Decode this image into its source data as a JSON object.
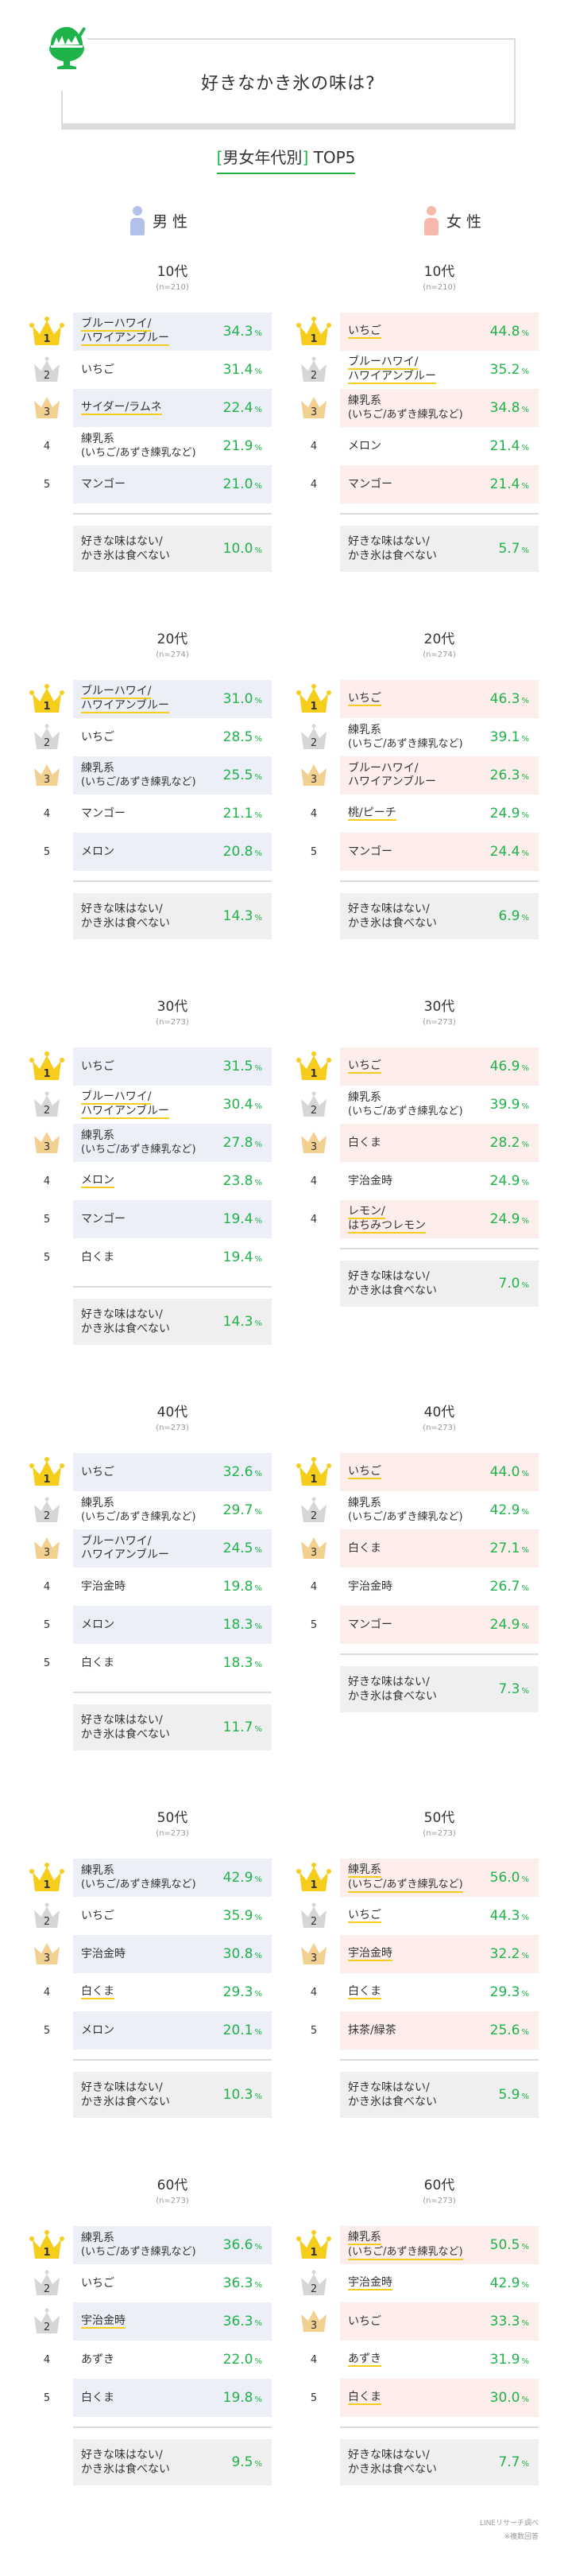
{
  "header": {
    "title": "好きなかき氷の味は?"
  },
  "subtitle": {
    "bracket_open": "[",
    "text": "男女年代別",
    "bracket_close": "]",
    "suffix": " TOP5"
  },
  "genders": {
    "male": "男 性",
    "female": "女 性"
  },
  "colors": {
    "accent": "#1fb34a",
    "male_row": "#eceef8",
    "female_row": "#fdeeec",
    "none_row": "#efefef",
    "underline": "#f7cd1d",
    "gold": "#f7cd1d",
    "silver": "#d6d6d6",
    "bronze": "#f2d08f",
    "male_icon": "#b3c0e8",
    "female_icon": "#f8b9ad"
  },
  "none_label": {
    "line1": "好きな味はない/",
    "line2": "かき氷は食べない"
  },
  "percent_sign": "%",
  "sections": [
    {
      "age": "10代",
      "n": "(n=210)",
      "male": {
        "items": [
          {
            "rank": "1",
            "crown": "gold",
            "lines": [
              "ブルーハワイ/",
              "ハワイアンブルー"
            ],
            "value": "34.3",
            "ul": true
          },
          {
            "rank": "2",
            "crown": "silver",
            "lines": [
              "いちご"
            ],
            "value": "31.4",
            "ul": false
          },
          {
            "rank": "3",
            "crown": "bronze",
            "lines": [
              "サイダー/ラムネ"
            ],
            "value": "22.4",
            "ul": true
          },
          {
            "rank": "4",
            "crown": "",
            "lines": [
              "練乳系",
              "(いちご/あずき練乳など)"
            ],
            "value": "21.9",
            "ul": false
          },
          {
            "rank": "5",
            "crown": "",
            "lines": [
              "マンゴー"
            ],
            "value": "21.0",
            "ul": false
          }
        ],
        "none_value": "10.0"
      },
      "female": {
        "items": [
          {
            "rank": "1",
            "crown": "gold",
            "lines": [
              "いちご"
            ],
            "value": "44.8",
            "ul": true
          },
          {
            "rank": "2",
            "crown": "silver",
            "lines": [
              "ブルーハワイ/",
              "ハワイアンブルー"
            ],
            "value": "35.2",
            "ul": true
          },
          {
            "rank": "3",
            "crown": "bronze",
            "lines": [
              "練乳系",
              "(いちご/あずき練乳など)"
            ],
            "value": "34.8",
            "ul": false
          },
          {
            "rank": "4",
            "crown": "",
            "lines": [
              "メロン"
            ],
            "value": "21.4",
            "ul": false
          },
          {
            "rank": "4",
            "crown": "",
            "lines": [
              "マンゴー"
            ],
            "value": "21.4",
            "ul": false
          }
        ],
        "none_value": "5.7"
      }
    },
    {
      "age": "20代",
      "n": "(n=274)",
      "male": {
        "items": [
          {
            "rank": "1",
            "crown": "gold",
            "lines": [
              "ブルーハワイ/",
              "ハワイアンブルー"
            ],
            "value": "31.0",
            "ul": true
          },
          {
            "rank": "2",
            "crown": "silver",
            "lines": [
              "いちご"
            ],
            "value": "28.5",
            "ul": false
          },
          {
            "rank": "3",
            "crown": "bronze",
            "lines": [
              "練乳系",
              "(いちご/あずき練乳など)"
            ],
            "value": "25.5",
            "ul": false
          },
          {
            "rank": "4",
            "crown": "",
            "lines": [
              "マンゴー"
            ],
            "value": "21.1",
            "ul": false
          },
          {
            "rank": "5",
            "crown": "",
            "lines": [
              "メロン"
            ],
            "value": "20.8",
            "ul": false
          }
        ],
        "none_value": "14.3"
      },
      "female": {
        "items": [
          {
            "rank": "1",
            "crown": "gold",
            "lines": [
              "いちご"
            ],
            "value": "46.3",
            "ul": true
          },
          {
            "rank": "2",
            "crown": "silver",
            "lines": [
              "練乳系",
              "(いちご/あずき練乳など)"
            ],
            "value": "39.1",
            "ul": false
          },
          {
            "rank": "3",
            "crown": "bronze",
            "lines": [
              "ブルーハワイ/",
              "ハワイアンブルー"
            ],
            "value": "26.3",
            "ul": false
          },
          {
            "rank": "4",
            "crown": "",
            "lines": [
              "桃/ピーチ"
            ],
            "value": "24.9",
            "ul": true
          },
          {
            "rank": "5",
            "crown": "",
            "lines": [
              "マンゴー"
            ],
            "value": "24.4",
            "ul": false
          }
        ],
        "none_value": "6.9"
      }
    },
    {
      "age": "30代",
      "n": "(n=273)",
      "male": {
        "items": [
          {
            "rank": "1",
            "crown": "gold",
            "lines": [
              "いちご"
            ],
            "value": "31.5",
            "ul": false
          },
          {
            "rank": "2",
            "crown": "silver",
            "lines": [
              "ブルーハワイ/",
              "ハワイアンブルー"
            ],
            "value": "30.4",
            "ul": true
          },
          {
            "rank": "3",
            "crown": "bronze",
            "lines": [
              "練乳系",
              "(いちご/あずき練乳など)"
            ],
            "value": "27.8",
            "ul": false
          },
          {
            "rank": "4",
            "crown": "",
            "lines": [
              "メロン"
            ],
            "value": "23.8",
            "ul": true
          },
          {
            "rank": "5",
            "crown": "",
            "lines": [
              "マンゴー"
            ],
            "value": "19.4",
            "ul": false
          },
          {
            "rank": "5",
            "crown": "",
            "lines": [
              "白くま"
            ],
            "value": "19.4",
            "ul": false
          }
        ],
        "none_value": "14.3"
      },
      "female": {
        "items": [
          {
            "rank": "1",
            "crown": "gold",
            "lines": [
              "いちご"
            ],
            "value": "46.9",
            "ul": true
          },
          {
            "rank": "2",
            "crown": "silver",
            "lines": [
              "練乳系",
              "(いちご/あずき練乳など)"
            ],
            "value": "39.9",
            "ul": false
          },
          {
            "rank": "3",
            "crown": "bronze",
            "lines": [
              "白くま"
            ],
            "value": "28.2",
            "ul": false
          },
          {
            "rank": "4",
            "crown": "",
            "lines": [
              "宇治金時"
            ],
            "value": "24.9",
            "ul": false
          },
          {
            "rank": "4",
            "crown": "",
            "lines": [
              "レモン/",
              "はちみつレモン"
            ],
            "value": "24.9",
            "ul": true
          }
        ],
        "none_value": "7.0"
      }
    },
    {
      "age": "40代",
      "n": "(n=273)",
      "male": {
        "items": [
          {
            "rank": "1",
            "crown": "gold",
            "lines": [
              "いちご"
            ],
            "value": "32.6",
            "ul": false
          },
          {
            "rank": "2",
            "crown": "silver",
            "lines": [
              "練乳系",
              "(いちご/あずき練乳など)"
            ],
            "value": "29.7",
            "ul": false
          },
          {
            "rank": "3",
            "crown": "bronze",
            "lines": [
              "ブルーハワイ/",
              "ハワイアンブルー"
            ],
            "value": "24.5",
            "ul": false
          },
          {
            "rank": "4",
            "crown": "",
            "lines": [
              "宇治金時"
            ],
            "value": "19.8",
            "ul": false
          },
          {
            "rank": "5",
            "crown": "",
            "lines": [
              "メロン"
            ],
            "value": "18.3",
            "ul": false
          },
          {
            "rank": "5",
            "crown": "",
            "lines": [
              "白くま"
            ],
            "value": "18.3",
            "ul": false
          }
        ],
        "none_value": "11.7"
      },
      "female": {
        "items": [
          {
            "rank": "1",
            "crown": "gold",
            "lines": [
              "いちご"
            ],
            "value": "44.0",
            "ul": true
          },
          {
            "rank": "2",
            "crown": "silver",
            "lines": [
              "練乳系",
              "(いちご/あずき練乳など)"
            ],
            "value": "42.9",
            "ul": false
          },
          {
            "rank": "3",
            "crown": "bronze",
            "lines": [
              "白くま"
            ],
            "value": "27.1",
            "ul": false
          },
          {
            "rank": "4",
            "crown": "",
            "lines": [
              "宇治金時"
            ],
            "value": "26.7",
            "ul": false
          },
          {
            "rank": "5",
            "crown": "",
            "lines": [
              "マンゴー"
            ],
            "value": "24.9",
            "ul": false
          }
        ],
        "none_value": "7.3"
      }
    },
    {
      "age": "50代",
      "n": "(n=273)",
      "male": {
        "items": [
          {
            "rank": "1",
            "crown": "gold",
            "lines": [
              "練乳系",
              "(いちご/あずき練乳など)"
            ],
            "value": "42.9",
            "ul": false
          },
          {
            "rank": "2",
            "crown": "silver",
            "lines": [
              "いちご"
            ],
            "value": "35.9",
            "ul": false
          },
          {
            "rank": "3",
            "crown": "bronze",
            "lines": [
              "宇治金時"
            ],
            "value": "30.8",
            "ul": false
          },
          {
            "rank": "4",
            "crown": "",
            "lines": [
              "白くま"
            ],
            "value": "29.3",
            "ul": true
          },
          {
            "rank": "5",
            "crown": "",
            "lines": [
              "メロン"
            ],
            "value": "20.1",
            "ul": false
          }
        ],
        "none_value": "10.3"
      },
      "female": {
        "items": [
          {
            "rank": "1",
            "crown": "gold",
            "lines": [
              "練乳系",
              "(いちご/あずき練乳など)"
            ],
            "value": "56.0",
            "ul": true
          },
          {
            "rank": "2",
            "crown": "silver",
            "lines": [
              "いちご"
            ],
            "value": "44.3",
            "ul": true
          },
          {
            "rank": "3",
            "crown": "bronze",
            "lines": [
              "宇治金時"
            ],
            "value": "32.2",
            "ul": true
          },
          {
            "rank": "4",
            "crown": "",
            "lines": [
              "白くま"
            ],
            "value": "29.3",
            "ul": true
          },
          {
            "rank": "5",
            "crown": "",
            "lines": [
              "抹茶/緑茶"
            ],
            "value": "25.6",
            "ul": false
          }
        ],
        "none_value": "5.9"
      }
    },
    {
      "age": "60代",
      "n": "(n=273)",
      "male": {
        "items": [
          {
            "rank": "1",
            "crown": "gold",
            "lines": [
              "練乳系",
              "(いちご/あずき練乳など)"
            ],
            "value": "36.6",
            "ul": false
          },
          {
            "rank": "2",
            "crown": "silver",
            "lines": [
              "いちご"
            ],
            "value": "36.3",
            "ul": false
          },
          {
            "rank": "2",
            "crown": "silver",
            "lines": [
              "宇治金時"
            ],
            "value": "36.3",
            "ul": true
          },
          {
            "rank": "4",
            "crown": "",
            "lines": [
              "あずき"
            ],
            "value": "22.0",
            "ul": false
          },
          {
            "rank": "5",
            "crown": "",
            "lines": [
              "白くま"
            ],
            "value": "19.8",
            "ul": false
          }
        ],
        "none_value": "9.5"
      },
      "female": {
        "items": [
          {
            "rank": "1",
            "crown": "gold",
            "lines": [
              "練乳系",
              "(いちご/あずき練乳など)"
            ],
            "value": "50.5",
            "ul": true
          },
          {
            "rank": "2",
            "crown": "silver",
            "lines": [
              "宇治金時"
            ],
            "value": "42.9",
            "ul": true
          },
          {
            "rank": "3",
            "crown": "bronze",
            "lines": [
              "いちご"
            ],
            "value": "33.3",
            "ul": false
          },
          {
            "rank": "4",
            "crown": "",
            "lines": [
              "あずき"
            ],
            "value": "31.9",
            "ul": true
          },
          {
            "rank": "5",
            "crown": "",
            "lines": [
              "白くま"
            ],
            "value": "30.0",
            "ul": true
          }
        ],
        "none_value": "7.7"
      }
    }
  ],
  "footer": {
    "source": "LINEリサーチ調べ",
    "note": "※複数回答"
  }
}
